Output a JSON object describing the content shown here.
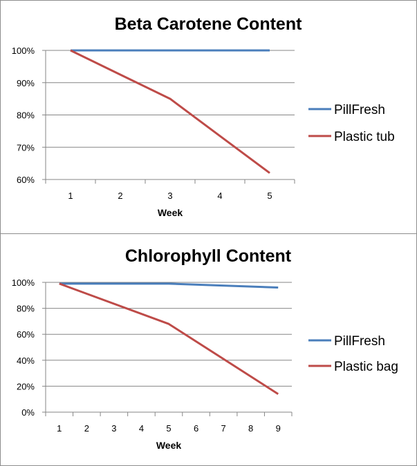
{
  "chart_data": [
    {
      "type": "line",
      "title": "Beta Carotene Content",
      "xlabel": "Week",
      "ylabel": "",
      "x": [
        1,
        2,
        3,
        4,
        5
      ],
      "ylim": [
        0.6,
        1.0
      ],
      "y_ticks": [
        "100%",
        "90%",
        "80%",
        "70%",
        "60%"
      ],
      "grid": true,
      "legend_position": "right",
      "series": [
        {
          "name": "PillFresh",
          "color": "#4a7ebb",
          "values": [
            1.0,
            1.0,
            1.0,
            1.0,
            1.0
          ]
        },
        {
          "name": "Plastic tub",
          "color": "#be4b48",
          "values": [
            1.0,
            0.925,
            0.85,
            0.735,
            0.62
          ]
        }
      ]
    },
    {
      "type": "line",
      "title": "Chlorophyll Content",
      "xlabel": "Week",
      "ylabel": "",
      "x": [
        1,
        2,
        3,
        4,
        5,
        6,
        7,
        8,
        9
      ],
      "ylim": [
        0,
        1.0
      ],
      "y_ticks": [
        "100%",
        "80%",
        "60%",
        "40%",
        "20%",
        "0%"
      ],
      "grid": true,
      "legend_position": "right",
      "series": [
        {
          "name": "PillFresh",
          "color": "#4a7ebb",
          "values": [
            0.99,
            null,
            null,
            null,
            0.99,
            null,
            null,
            null,
            0.96
          ]
        },
        {
          "name": "Plastic bag",
          "color": "#be4b48",
          "values": [
            0.99,
            null,
            null,
            null,
            0.68,
            null,
            null,
            null,
            0.14
          ]
        }
      ]
    }
  ]
}
